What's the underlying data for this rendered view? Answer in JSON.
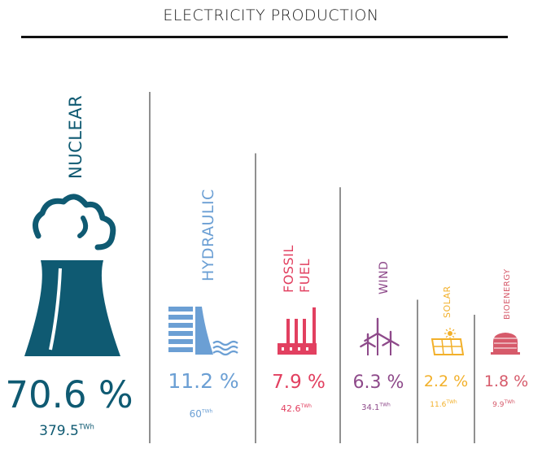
{
  "title": "ELECTRICITY PRODUCTION",
  "chart_data": {
    "type": "bar",
    "title": "ELECTRICITY PRODUCTION",
    "categories": [
      "NUCLEAR",
      "HYDRAULIC",
      "FOSSIL FUEL",
      "WIND",
      "SOLAR",
      "BIOENERGY"
    ],
    "series": [
      {
        "values": [
          70.6,
          11.2,
          7.9,
          6.3,
          2.2,
          1.8
        ],
        "unit": "%"
      }
    ],
    "twh": [
      379.5,
      60,
      42.6,
      34.1,
      11.6,
      9.9
    ],
    "twh_unit": "TWh",
    "labels": [
      [
        "NUCLEAR"
      ],
      [
        "HYDRAULIC"
      ],
      [
        "FOSSIL",
        "FUEL"
      ],
      [
        "WIND"
      ],
      [
        "SOLAR"
      ],
      [
        "BIOENERGY"
      ]
    ],
    "pct_text": [
      "70.6 %",
      "11.2 %",
      "7.9 %",
      "6.3 %",
      "2.2 %",
      "1.8 %"
    ],
    "twh_text": [
      "379.5",
      "60",
      "42.6",
      "34.1",
      "11.6",
      "9.9"
    ],
    "colors": [
      "#0f5a72",
      "#6b9fd4",
      "#e24060",
      "#8e4a8a",
      "#f2b02a",
      "#d65a6a"
    ],
    "icons": [
      "nuclear-plant-icon",
      "dam-icon",
      "factory-icon",
      "wind-turbine-icon",
      "solar-panel-icon",
      "biogas-icon"
    ]
  }
}
